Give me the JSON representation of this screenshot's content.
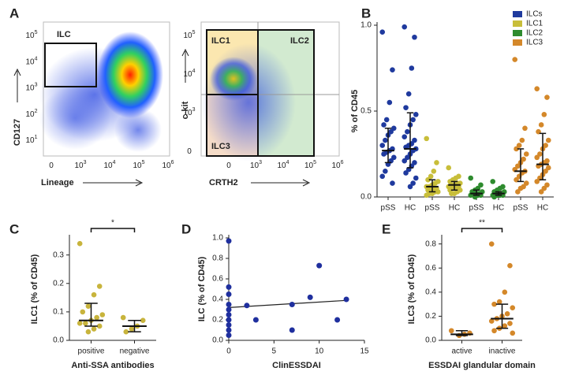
{
  "panel_labels": [
    "A",
    "B",
    "C",
    "D",
    "E"
  ],
  "flow_plots": [
    {
      "gate_labels": [
        "ILC"
      ],
      "x_label": "Lineage",
      "y_label": "CD127",
      "xticks": [
        {
          "base": "0"
        },
        {
          "base": "10",
          "exp": "3"
        },
        {
          "base": "10",
          "exp": "4"
        },
        {
          "base": "10",
          "exp": "5"
        },
        {
          "base": "10",
          "exp": "6"
        }
      ],
      "yticks": [
        {
          "base": "10",
          "exp": "5"
        },
        {
          "base": "10",
          "exp": "4"
        },
        {
          "base": "10",
          "exp": "3"
        },
        {
          "base": "10",
          "exp": "2"
        },
        {
          "base": "10",
          "exp": "1"
        }
      ]
    },
    {
      "gate_labels": [
        "ILC1",
        "ILC2",
        "ILC3"
      ],
      "x_label": "CRTH2",
      "y_label": "c-kit",
      "xticks": [
        {
          "base": "0"
        },
        {
          "base": "10",
          "exp": "3"
        },
        {
          "base": "10",
          "exp": "4"
        },
        {
          "base": "10",
          "exp": "5"
        },
        {
          "base": "10",
          "exp": "6"
        }
      ],
      "yticks": [
        {
          "base": "10",
          "exp": "5"
        },
        {
          "base": "10",
          "exp": "4"
        },
        {
          "base": "10",
          "exp": "3"
        },
        {
          "base": "0"
        }
      ]
    }
  ],
  "chart_data": [
    {
      "type": "dot",
      "y_label": "% of CD45",
      "legend": "top-right",
      "categories": [
        "pSS",
        "HC",
        "pSS",
        "HC",
        "pSS",
        "HC",
        "pSS",
        "HC"
      ],
      "ylim": [
        0,
        1
      ],
      "yticks": [
        {
          "value": 0,
          "label": "0.0"
        },
        0.5,
        {
          "value": 1,
          "label": "1.0"
        }
      ],
      "series": [
        {
          "name": "ILCs",
          "color": "#1f3a9e",
          "values": [
            [
              0.96,
              0.74,
              0.55,
              0.45,
              0.42,
              0.4,
              0.38,
              0.36,
              0.33,
              0.3,
              0.28,
              0.27,
              0.26,
              0.25,
              0.23,
              0.21,
              0.19,
              0.15,
              0.12,
              0.08
            ],
            [
              0.99,
              0.93,
              0.75,
              0.6,
              0.52,
              0.48,
              0.45,
              0.42,
              0.38,
              0.35,
              0.33,
              0.31,
              0.3,
              0.29,
              0.28,
              0.27,
              0.25,
              0.23,
              0.21,
              0.2,
              0.18,
              0.16,
              0.14,
              0.11,
              0.08,
              0.06
            ],
            null,
            null,
            null,
            null,
            null,
            null
          ],
          "medians": [
            0.27,
            0.28,
            null,
            null,
            null,
            null,
            null,
            null
          ],
          "q1": [
            0.2,
            0.17,
            null,
            null,
            null,
            null,
            null,
            null
          ],
          "q3": [
            0.4,
            0.49,
            null,
            null,
            null,
            null,
            null,
            null
          ]
        },
        {
          "name": "ILC1",
          "color": "#c8be3a",
          "values": [
            null,
            null,
            [
              0.34,
              0.2,
              0.15,
              0.12,
              0.1,
              0.09,
              0.08,
              0.07,
              0.06,
              0.06,
              0.05,
              0.05,
              0.04,
              0.04,
              0.03,
              0.03,
              0.02,
              0.02,
              0.01
            ],
            [
              0.17,
              0.12,
              0.11,
              0.1,
              0.09,
              0.08,
              0.08,
              0.07,
              0.07,
              0.06,
              0.06,
              0.05,
              0.05,
              0.04,
              0.04,
              0.03,
              0.02,
              0.02
            ],
            null,
            null,
            null,
            null
          ],
          "medians": [
            null,
            null,
            0.06,
            0.07,
            null,
            null,
            null,
            null
          ],
          "q1": [
            null,
            null,
            0.03,
            0.04,
            null,
            null,
            null,
            null
          ],
          "q3": [
            null,
            null,
            0.1,
            0.09,
            null,
            null,
            null,
            null
          ]
        },
        {
          "name": "ILC2",
          "color": "#2e8b2e",
          "values": [
            null,
            null,
            null,
            null,
            [
              0.11,
              0.07,
              0.05,
              0.04,
              0.03,
              0.03,
              0.02,
              0.02,
              0.02,
              0.01,
              0.01,
              0.01,
              0
            ],
            [
              0.09,
              0.06,
              0.05,
              0.04,
              0.03,
              0.03,
              0.02,
              0.02,
              0.02,
              0.01,
              0.01,
              0.01,
              0.01,
              0
            ],
            null,
            null
          ],
          "medians": [
            null,
            null,
            null,
            null,
            0.02,
            0.02,
            null,
            null
          ],
          "q1": [
            null,
            null,
            null,
            null,
            0.01,
            0.01,
            null,
            null
          ],
          "q3": [
            null,
            null,
            null,
            null,
            0.04,
            0.03,
            null,
            null
          ]
        },
        {
          "name": "ILC3",
          "color": "#d4882a",
          "values": [
            null,
            null,
            null,
            null,
            null,
            null,
            [
              0.8,
              0.4,
              0.33,
              0.3,
              0.28,
              0.25,
              0.22,
              0.2,
              0.18,
              0.16,
              0.15,
              0.14,
              0.12,
              0.1,
              0.08,
              0.06,
              0.05,
              0.03
            ],
            [
              0.63,
              0.58,
              0.48,
              0.42,
              0.38,
              0.33,
              0.3,
              0.28,
              0.25,
              0.23,
              0.21,
              0.2,
              0.19,
              0.18,
              0.17,
              0.15,
              0.13,
              0.11,
              0.09,
              0.07,
              0.05,
              0.03
            ]
          ],
          "medians": [
            null,
            null,
            null,
            null,
            null,
            null,
            0.15,
            0.19
          ],
          "q1": [
            null,
            null,
            null,
            null,
            null,
            null,
            0.09,
            0.1
          ],
          "q3": [
            null,
            null,
            null,
            null,
            null,
            null,
            0.28,
            0.37
          ]
        }
      ]
    },
    {
      "type": "dot",
      "y_label": "ILC1 (% of CD45)",
      "x_label": "Anti-SSA antibodies",
      "significance": "*",
      "categories": [
        "positive",
        "negative"
      ],
      "ylim": [
        0,
        0.36
      ],
      "yticks": [
        {
          "value": 0,
          "label": "0.0"
        },
        0.1,
        0.2,
        0.3
      ],
      "series": [
        {
          "color": "#c8b43c",
          "values": [
            [
              0.34,
              0.19,
              0.16,
              0.12,
              0.1,
              0.09,
              0.08,
              0.07,
              0.06,
              0.06,
              0.05,
              0.04,
              0.03
            ],
            [
              0.08,
              0.07,
              0.05,
              0.04,
              0.03
            ]
          ],
          "medians": [
            0.07,
            0.05
          ],
          "q1": [
            0.05,
            0.03
          ],
          "q3": [
            0.13,
            0.07
          ]
        }
      ]
    },
    {
      "type": "scatter",
      "y_label": "ILC (% of CD45)",
      "x_label": "ClinESSDAI",
      "color": "#1f2f9e",
      "x": [
        0,
        0,
        0,
        0,
        0,
        0,
        0,
        0,
        0,
        0,
        2,
        3,
        7,
        7,
        9,
        10,
        12,
        13
      ],
      "values": [
        0.97,
        0.52,
        0.45,
        0.35,
        0.3,
        0.25,
        0.2,
        0.15,
        0.1,
        0.05,
        0.34,
        0.2,
        0.35,
        0.1,
        0.42,
        0.73,
        0.2,
        0.4
      ],
      "fit": {
        "x": [
          0,
          13
        ],
        "y": [
          0.32,
          0.39
        ]
      },
      "xlim": [
        0,
        15
      ],
      "xticks": [
        0,
        5,
        10,
        15
      ],
      "ylim": [
        0,
        1
      ],
      "yticks": [
        {
          "value": 0,
          "label": "0.0"
        },
        0.2,
        0.4,
        0.6,
        0.8,
        {
          "value": 1,
          "label": "1.0"
        }
      ]
    },
    {
      "type": "dot",
      "y_label": "ILC3 (% of CD45)",
      "x_label": "ESSDAI glandular domain",
      "significance": "**",
      "categories": [
        "active",
        "inactive"
      ],
      "ylim": [
        0,
        0.85
      ],
      "yticks": [
        {
          "value": 0,
          "label": "0.0"
        },
        0.2,
        0.4,
        0.6,
        0.8
      ],
      "series": [
        {
          "color": "#d4882a",
          "values": [
            [
              0.08,
              0.06,
              0.05,
              0.04
            ],
            [
              0.8,
              0.62,
              0.4,
              0.32,
              0.3,
              0.27,
              0.22,
              0.2,
              0.18,
              0.16,
              0.14,
              0.12,
              0.1,
              0.08,
              0.06
            ]
          ],
          "medians": [
            0.05,
            0.18
          ],
          "q1": [
            0.04,
            0.1
          ],
          "q3": [
            0.08,
            0.3
          ]
        }
      ]
    }
  ]
}
